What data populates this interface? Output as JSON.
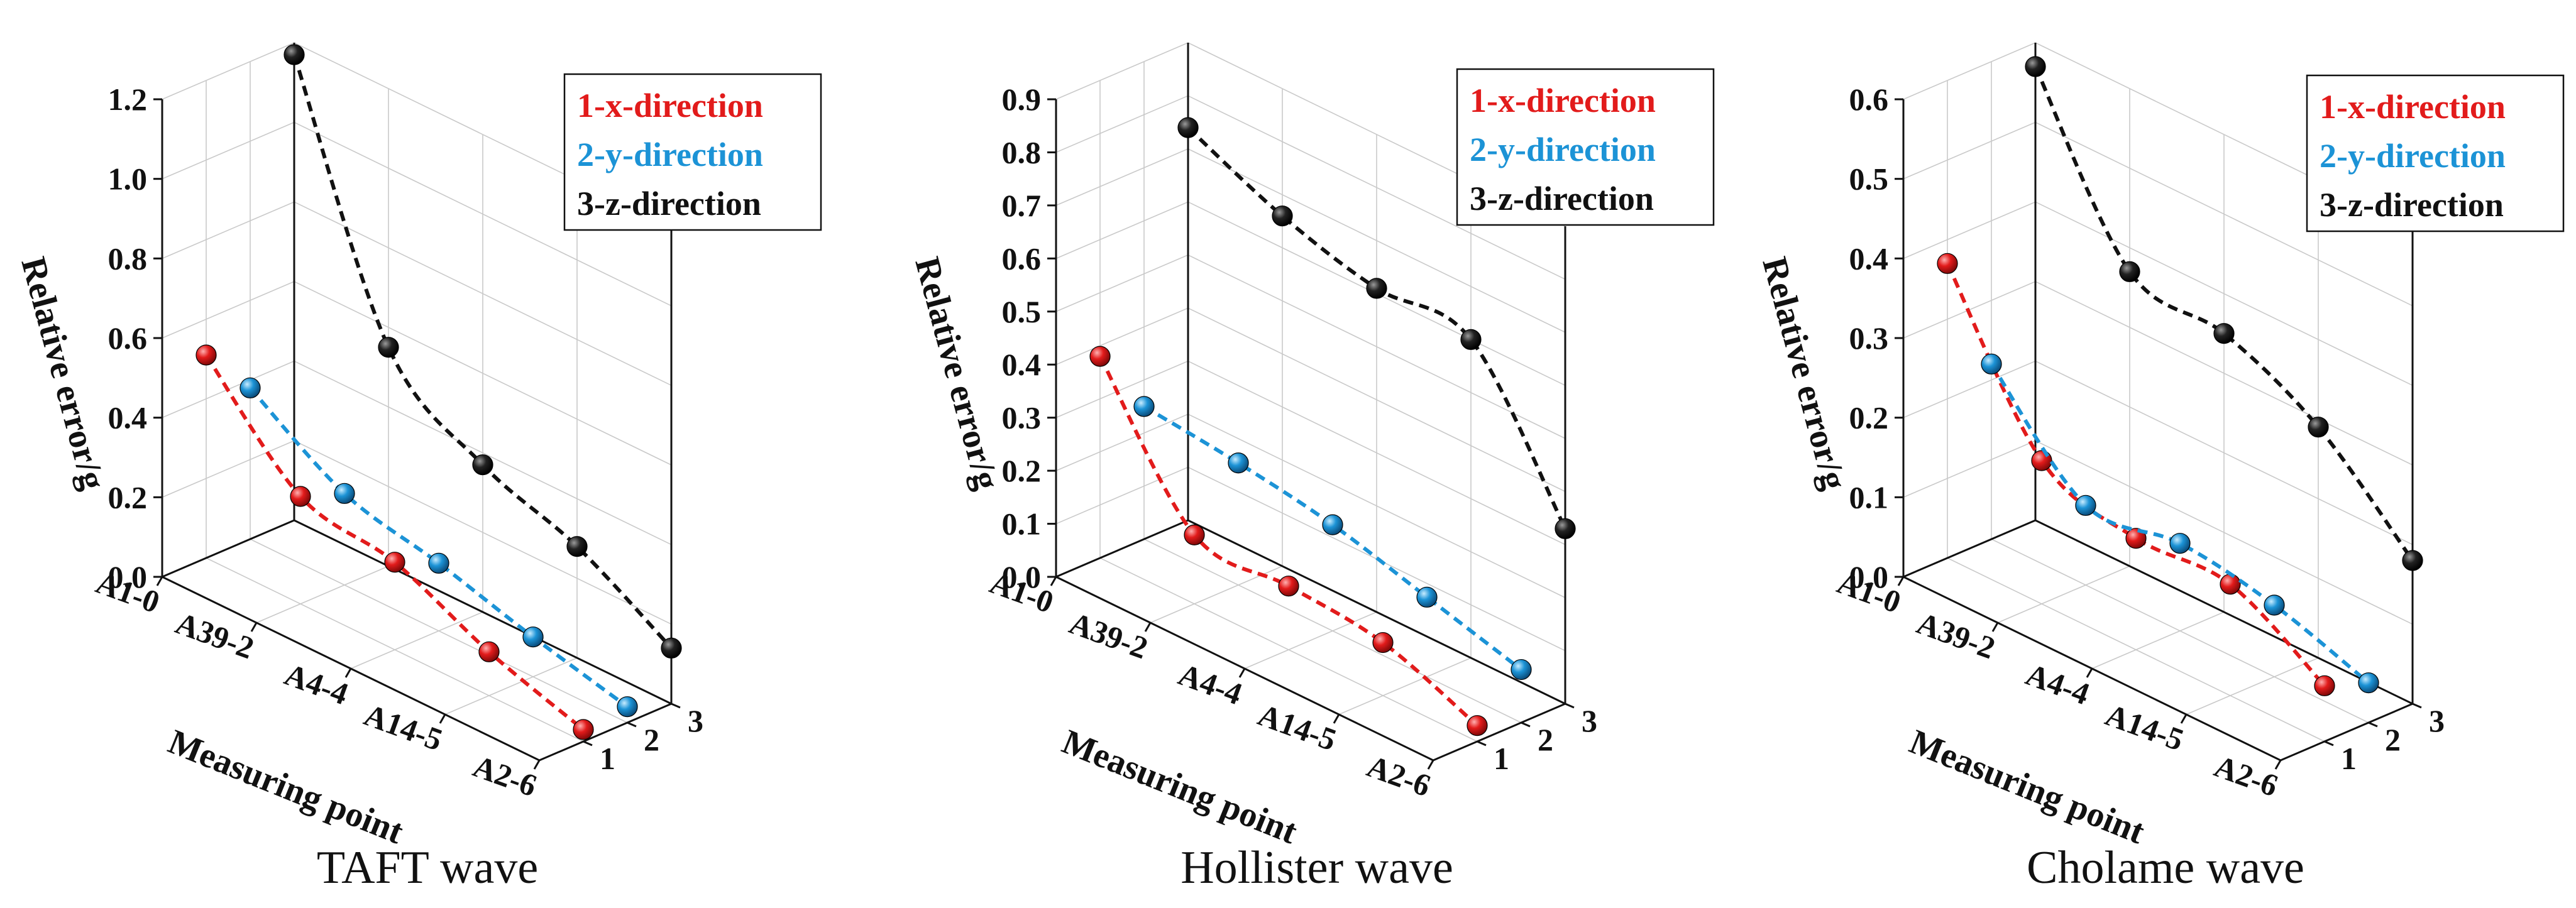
{
  "figure": {
    "categories": [
      "A1-0",
      "A39-2",
      "A4-4",
      "A14-5",
      "A2-6"
    ],
    "depth_ticks": [
      "1",
      "2",
      "3"
    ],
    "xlabel": "Measuring point",
    "ylabel": "Relative error/g",
    "colors": {
      "x": "#e21b1b",
      "y": "#1c93d6",
      "z": "#111111"
    }
  },
  "chart_data": [
    {
      "type": "line",
      "title": "TAFT wave",
      "xlabel": "Measuring point",
      "ylabel": "Relative error/g",
      "zlabel": "",
      "categories": [
        "A1-0",
        "A39-2",
        "A4-4",
        "A14-5",
        "A2-6"
      ],
      "ylim": [
        0.0,
        1.2
      ],
      "yticks": [
        "0.0",
        "0.2",
        "0.4",
        "0.6",
        "0.8",
        "1.0",
        "1.2"
      ],
      "depth_ticks": [
        "1",
        "2",
        "3"
      ],
      "legend_position": "top-right",
      "series": [
        {
          "name": "1-x-direction",
          "depth": 1,
          "color": "#e21b1b",
          "values": [
            0.51,
            0.27,
            0.22,
            0.11,
            0.03
          ]
        },
        {
          "name": "2-y-direction",
          "depth": 2,
          "color": "#1c93d6",
          "values": [
            0.38,
            0.23,
            0.17,
            0.1,
            0.04
          ]
        },
        {
          "name": "3-z-direction",
          "depth": 3,
          "color": "#111111",
          "values": [
            1.17,
            0.55,
            0.37,
            0.28,
            0.14
          ]
        }
      ]
    },
    {
      "type": "line",
      "title": "Hollister wave",
      "xlabel": "Measuring point",
      "ylabel": "Relative error/g",
      "zlabel": "",
      "categories": [
        "A1-0",
        "A39-2",
        "A4-4",
        "A14-5",
        "A2-6"
      ],
      "ylim": [
        0.0,
        0.9
      ],
      "yticks": [
        "0.0",
        "0.1",
        "0.2",
        "0.3",
        "0.4",
        "0.5",
        "0.6",
        "0.7",
        "0.8",
        "0.9"
      ],
      "depth_ticks": [
        "1",
        "2",
        "3"
      ],
      "legend_position": "top-right",
      "series": [
        {
          "name": "1-x-direction",
          "depth": 1,
          "color": "#e21b1b",
          "values": [
            0.38,
            0.13,
            0.12,
            0.1,
            0.03
          ]
        },
        {
          "name": "2-y-direction",
          "depth": 2,
          "color": "#1c93d6",
          "values": [
            0.25,
            0.23,
            0.2,
            0.15,
            0.1
          ]
        },
        {
          "name": "3-z-direction",
          "depth": 3,
          "color": "#111111",
          "values": [
            0.74,
            0.66,
            0.61,
            0.6,
            0.33
          ]
        }
      ]
    },
    {
      "type": "line",
      "title": "Cholame wave",
      "xlabel": "Measuring point",
      "ylabel": "Relative error/g",
      "zlabel": "",
      "categories": [
        "A1-0",
        "A39-2",
        "A4-4",
        "A14-5",
        "A2-6"
      ],
      "ylim": [
        0.0,
        0.6
      ],
      "yticks": [
        "0.0",
        "0.1",
        "0.2",
        "0.3",
        "0.4",
        "0.5",
        "0.6"
      ],
      "depth_ticks": [
        "1",
        "2",
        "3"
      ],
      "legend_position": "top-right",
      "series": [
        {
          "name": "1-x-direction",
          "depth": 1,
          "color": "#e21b1b",
          "values": [
            0.37,
            0.18,
            0.14,
            0.14,
            0.07
          ]
        },
        {
          "name": "2-y-direction",
          "depth": 2,
          "color": "#1c93d6",
          "values": [
            0.22,
            0.1,
            0.11,
            0.09,
            0.05
          ]
        },
        {
          "name": "3-z-direction",
          "depth": 3,
          "color": "#111111",
          "values": [
            0.57,
            0.37,
            0.35,
            0.29,
            0.18
          ]
        }
      ]
    }
  ]
}
